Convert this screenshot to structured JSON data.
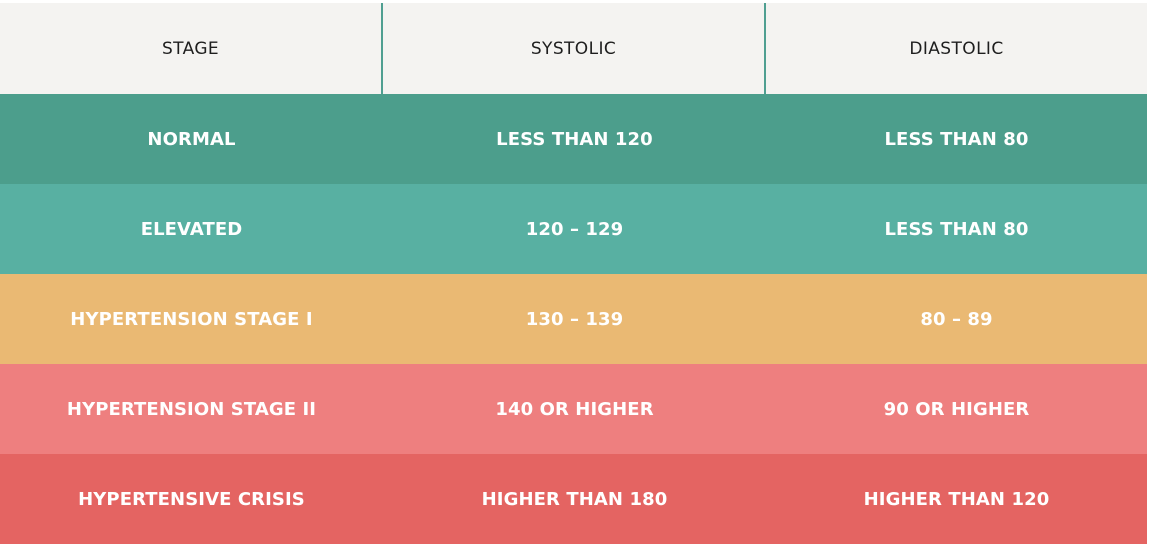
{
  "table": {
    "headers": [
      "STAGE",
      "SYSTOLIC",
      "DIASTOLIC"
    ],
    "rows": [
      {
        "stage": "NORMAL",
        "systolic": "LESS THAN 120",
        "diastolic": "LESS THAN 80",
        "color": "#4c9e8c"
      },
      {
        "stage": "ELEVATED",
        "systolic": "120 – 129",
        "diastolic": "LESS THAN 80",
        "color": "#58b0a2"
      },
      {
        "stage": "HYPERTENSION STAGE I",
        "systolic": "130 – 139",
        "diastolic": "80 – 89",
        "color": "#eab973"
      },
      {
        "stage": "HYPERTENSION STAGE II",
        "systolic": "140 OR HIGHER",
        "diastolic": "90 OR HIGHER",
        "color": "#ee7f7f"
      },
      {
        "stage": "HYPERTENSIVE CRISIS",
        "systolic": "HIGHER THAN 180",
        "diastolic": "HIGHER THAN 120",
        "color": "#e46462"
      }
    ]
  },
  "colors": {
    "header_background": "#f4f3f1",
    "header_text": "#1e1e1e",
    "divider": "#4f9f91",
    "body_text": "#ffffff"
  }
}
